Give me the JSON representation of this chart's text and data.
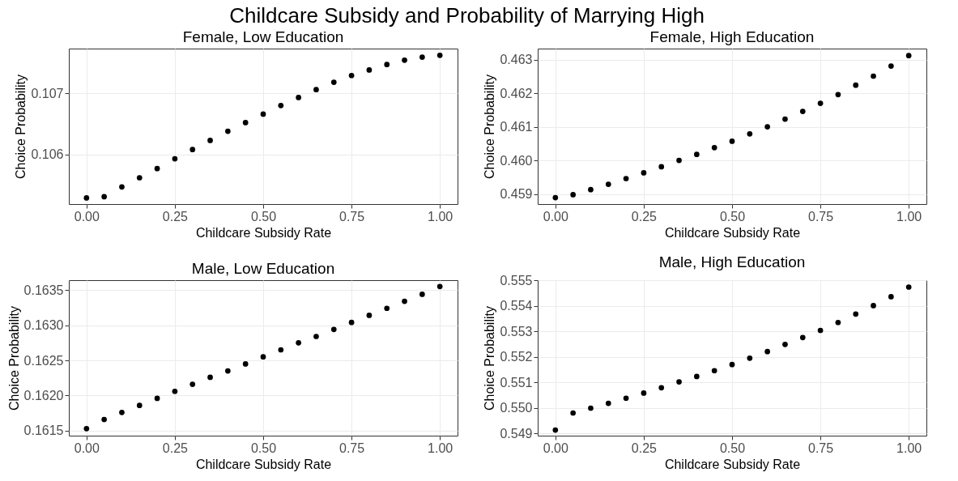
{
  "chart_data": [
    {
      "type": "scatter",
      "title": "Childcare Subsidy and Probability of Marrying High",
      "subtitle": "Female, Low Education",
      "xlabel": "Childcare Subsidy Rate",
      "ylabel": "Choice Probability",
      "marker": "circle",
      "grid": true,
      "x": [
        0,
        0.05,
        0.1,
        0.15,
        0.2,
        0.25,
        0.3,
        0.35,
        0.4,
        0.45,
        0.5,
        0.55,
        0.6,
        0.65,
        0.7,
        0.75,
        0.8,
        0.85,
        0.9,
        0.95,
        1
      ],
      "series": [
        {
          "color": "#000000",
          "values": [
            0.10529,
            0.10531,
            0.10547,
            0.10562,
            0.10577,
            0.10593,
            0.10608,
            0.10623,
            0.10638,
            0.10652,
            0.10666,
            0.1068,
            0.10693,
            0.10706,
            0.10718,
            0.10729,
            0.10738,
            0.10747,
            0.10754,
            0.10759,
            0.10762
          ]
        }
      ],
      "xlim": [
        -0.05,
        1.05
      ],
      "xticks": [
        {
          "value": 0,
          "label": "0.00"
        },
        {
          "value": 0.25,
          "label": "0.25"
        },
        {
          "value": 0.5,
          "label": "0.50"
        },
        {
          "value": 0.75,
          "label": "0.75"
        },
        {
          "value": 1,
          "label": "1.00"
        }
      ],
      "ylim": [
        0.10519,
        0.10773
      ],
      "yticks": [
        0.106,
        0.107
      ]
    },
    {
      "type": "scatter",
      "subtitle": "Female, High Education",
      "xlabel": "Childcare Subsidy Rate",
      "ylabel": "Choice Probability",
      "marker": "circle",
      "grid": true,
      "x": [
        0,
        0.05,
        0.1,
        0.15,
        0.2,
        0.25,
        0.3,
        0.35,
        0.4,
        0.45,
        0.5,
        0.55,
        0.6,
        0.65,
        0.7,
        0.75,
        0.8,
        0.85,
        0.9,
        0.95,
        1
      ],
      "series": [
        {
          "color": "#000000",
          "values": [
            0.45889,
            0.45898,
            0.45913,
            0.45929,
            0.45946,
            0.45963,
            0.45981,
            0.46,
            0.46018,
            0.46038,
            0.46057,
            0.46079,
            0.461,
            0.46123,
            0.46146,
            0.4617,
            0.46196,
            0.46224,
            0.46251,
            0.46281,
            0.46312
          ]
        }
      ],
      "xlim": [
        -0.05,
        1.05
      ],
      "xticks": [
        {
          "value": 0,
          "label": "0.00"
        },
        {
          "value": 0.25,
          "label": "0.25"
        },
        {
          "value": 0.5,
          "label": "0.50"
        },
        {
          "value": 0.75,
          "label": "0.75"
        },
        {
          "value": 1,
          "label": "1.00"
        }
      ],
      "ylim": [
        0.4587,
        0.46333
      ],
      "yticks": [
        0.459,
        {
          "value": 0.46,
          "label": "0.460"
        },
        0.461,
        0.462,
        0.463
      ]
    },
    {
      "type": "scatter",
      "subtitle": "Male, Low Education",
      "xlabel": "Childcare Subsidy Rate",
      "ylabel": "Choice Probability",
      "marker": "circle",
      "grid": true,
      "x": [
        0,
        0.05,
        0.1,
        0.15,
        0.2,
        0.25,
        0.3,
        0.35,
        0.4,
        0.45,
        0.5,
        0.55,
        0.6,
        0.65,
        0.7,
        0.75,
        0.8,
        0.85,
        0.9,
        0.95,
        1
      ],
      "series": [
        {
          "color": "#000000",
          "values": [
            0.16153,
            0.16166,
            0.16176,
            0.16186,
            0.16196,
            0.16206,
            0.16216,
            0.16226,
            0.16235,
            0.16245,
            0.16255,
            0.16265,
            0.16275,
            0.16284,
            0.16294,
            0.16304,
            0.16314,
            0.16324,
            0.16334,
            0.16344,
            0.16355
          ]
        }
      ],
      "xlim": [
        -0.05,
        1.05
      ],
      "xticks": [
        {
          "value": 0,
          "label": "0.00"
        },
        {
          "value": 0.25,
          "label": "0.25"
        },
        {
          "value": 0.5,
          "label": "0.50"
        },
        {
          "value": 0.75,
          "label": "0.75"
        },
        {
          "value": 1,
          "label": "1.00"
        }
      ],
      "ylim": [
        0.16143,
        0.16364
      ],
      "yticks": [
        0.1615,
        {
          "value": 0.162,
          "label": "0.1620"
        },
        0.1625,
        {
          "value": 0.163,
          "label": "0.1630"
        },
        0.1635
      ]
    },
    {
      "type": "scatter",
      "subtitle": "Male, High Education",
      "xlabel": "Childcare Subsidy Rate",
      "ylabel": "Choice Probability",
      "marker": "circle",
      "grid": true,
      "x": [
        0,
        0.05,
        0.1,
        0.15,
        0.2,
        0.25,
        0.3,
        0.35,
        0.4,
        0.45,
        0.5,
        0.55,
        0.6,
        0.65,
        0.7,
        0.75,
        0.8,
        0.85,
        0.9,
        0.95,
        1
      ],
      "series": [
        {
          "color": "#000000",
          "values": [
            0.54913,
            0.5498,
            0.54999,
            0.55018,
            0.55038,
            0.55058,
            0.55079,
            0.55102,
            0.55123,
            0.55146,
            0.5517,
            0.55195,
            0.55221,
            0.55249,
            0.55276,
            0.55304,
            0.55335,
            0.55368,
            0.55401,
            0.55436,
            0.55474
          ]
        }
      ],
      "xlim": [
        -0.05,
        1.05
      ],
      "xticks": [
        {
          "value": 0,
          "label": "0.00"
        },
        {
          "value": 0.25,
          "label": "0.25"
        },
        {
          "value": 0.5,
          "label": "0.50"
        },
        {
          "value": 0.75,
          "label": "0.75"
        },
        {
          "value": 1,
          "label": "1.00"
        }
      ],
      "ylim": [
        0.54891,
        0.55501
      ],
      "yticks": [
        0.549,
        {
          "value": 0.55,
          "label": "0.550"
        },
        0.551,
        0.552,
        0.553,
        0.554,
        0.555
      ]
    }
  ]
}
